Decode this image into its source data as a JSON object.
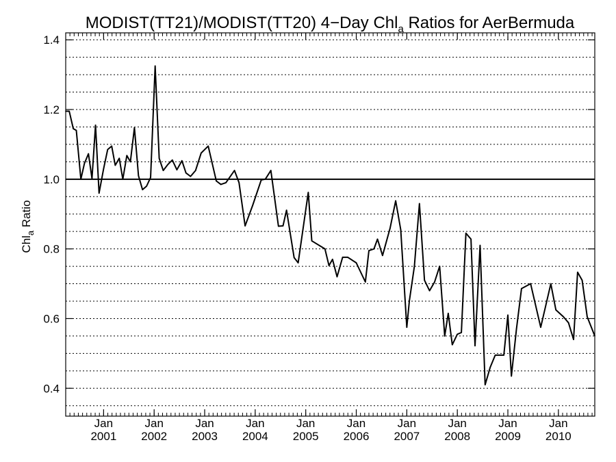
{
  "chart_data": {
    "type": "line",
    "title": {
      "main": "MODIST(TT21)/MODIST(TT20) 4−Day Chl",
      "sub": "a",
      "end": " Ratios for AerBermuda"
    },
    "ylabel": {
      "main": "Chl",
      "sub": "a",
      "end": " Ratio"
    },
    "ylim": [
      0.32,
      1.42
    ],
    "xlim": [
      2000.25,
      2010.72
    ],
    "y_ticks": [
      0.4,
      0.6,
      0.8,
      1.0,
      1.2,
      1.4
    ],
    "y_tick_labels": [
      "0.4",
      "0.6",
      "0.8",
      "1.0",
      "1.2",
      "1.4"
    ],
    "y_minor_gridlines": [
      0.35,
      0.4,
      0.45,
      0.5,
      0.55,
      0.6,
      0.65,
      0.7,
      0.75,
      0.8,
      0.85,
      0.9,
      0.95,
      1.05,
      1.1,
      1.15,
      1.2,
      1.25,
      1.3,
      1.35,
      1.4
    ],
    "reference_line": 1.0,
    "grid": "dotted horizontal",
    "x_ticks": [
      {
        "x": 2001.0,
        "month": "Jan",
        "year": "2001"
      },
      {
        "x": 2002.0,
        "month": "Jan",
        "year": "2002"
      },
      {
        "x": 2003.0,
        "month": "Jan",
        "year": "2003"
      },
      {
        "x": 2004.0,
        "month": "Jan",
        "year": "2004"
      },
      {
        "x": 2005.0,
        "month": "Jan",
        "year": "2005"
      },
      {
        "x": 2006.0,
        "month": "Jan",
        "year": "2006"
      },
      {
        "x": 2007.0,
        "month": "Jan",
        "year": "2007"
      },
      {
        "x": 2008.0,
        "month": "Jan",
        "year": "2008"
      },
      {
        "x": 2009.0,
        "month": "Jan",
        "year": "2009"
      },
      {
        "x": 2010.0,
        "month": "Jan",
        "year": "2010"
      }
    ],
    "series": [
      {
        "color": "#000000",
        "points": [
          [
            2000.25,
            1.195
          ],
          [
            2000.32,
            1.195
          ],
          [
            2000.4,
            1.145
          ],
          [
            2000.46,
            1.14
          ],
          [
            2000.55,
            1.0
          ],
          [
            2000.62,
            1.045
          ],
          [
            2000.7,
            1.073
          ],
          [
            2000.77,
            1.002
          ],
          [
            2000.84,
            1.155
          ],
          [
            2000.91,
            0.96
          ],
          [
            2001.0,
            1.03
          ],
          [
            2001.08,
            1.085
          ],
          [
            2001.16,
            1.095
          ],
          [
            2001.23,
            1.04
          ],
          [
            2001.31,
            1.06
          ],
          [
            2001.38,
            1.0
          ],
          [
            2001.46,
            1.068
          ],
          [
            2001.53,
            1.05
          ],
          [
            2001.61,
            1.148
          ],
          [
            2001.69,
            1.01
          ],
          [
            2001.77,
            0.97
          ],
          [
            2001.85,
            0.98
          ],
          [
            2001.93,
            1.005
          ],
          [
            2002.02,
            1.325
          ],
          [
            2002.1,
            1.06
          ],
          [
            2002.18,
            1.025
          ],
          [
            2002.27,
            1.042
          ],
          [
            2002.36,
            1.055
          ],
          [
            2002.45,
            1.027
          ],
          [
            2002.55,
            1.053
          ],
          [
            2002.63,
            1.018
          ],
          [
            2002.72,
            1.008
          ],
          [
            2002.82,
            1.025
          ],
          [
            2002.93,
            1.075
          ],
          [
            2003.07,
            1.095
          ],
          [
            2003.23,
            0.995
          ],
          [
            2003.32,
            0.985
          ],
          [
            2003.42,
            0.99
          ],
          [
            2003.59,
            1.025
          ],
          [
            2003.68,
            0.99
          ],
          [
            2003.8,
            0.866
          ],
          [
            2003.95,
            0.925
          ],
          [
            2004.12,
            0.998
          ],
          [
            2004.2,
            1.0
          ],
          [
            2004.31,
            1.025
          ],
          [
            2004.46,
            0.865
          ],
          [
            2004.55,
            0.866
          ],
          [
            2004.62,
            0.911
          ],
          [
            2004.77,
            0.775
          ],
          [
            2004.85,
            0.76
          ],
          [
            2005.05,
            0.962
          ],
          [
            2005.12,
            0.823
          ],
          [
            2005.38,
            0.8
          ],
          [
            2005.46,
            0.752
          ],
          [
            2005.53,
            0.77
          ],
          [
            2005.62,
            0.72
          ],
          [
            2005.73,
            0.776
          ],
          [
            2005.83,
            0.776
          ],
          [
            2006.0,
            0.76
          ],
          [
            2006.18,
            0.705
          ],
          [
            2006.25,
            0.795
          ],
          [
            2006.35,
            0.8
          ],
          [
            2006.42,
            0.828
          ],
          [
            2006.52,
            0.781
          ],
          [
            2006.67,
            0.86
          ],
          [
            2006.78,
            0.938
          ],
          [
            2006.88,
            0.855
          ],
          [
            2007.0,
            0.575
          ],
          [
            2007.05,
            0.65
          ],
          [
            2007.15,
            0.75
          ],
          [
            2007.25,
            0.93
          ],
          [
            2007.35,
            0.71
          ],
          [
            2007.45,
            0.68
          ],
          [
            2007.55,
            0.705
          ],
          [
            2007.65,
            0.75
          ],
          [
            2007.75,
            0.55
          ],
          [
            2007.82,
            0.615
          ],
          [
            2007.9,
            0.525
          ],
          [
            2008.0,
            0.555
          ],
          [
            2008.08,
            0.56
          ],
          [
            2008.17,
            0.845
          ],
          [
            2008.27,
            0.828
          ],
          [
            2008.35,
            0.522
          ],
          [
            2008.45,
            0.81
          ],
          [
            2008.55,
            0.41
          ],
          [
            2008.65,
            0.46
          ],
          [
            2008.75,
            0.495
          ],
          [
            2008.85,
            0.495
          ],
          [
            2008.92,
            0.495
          ],
          [
            2009.0,
            0.61
          ],
          [
            2009.07,
            0.435
          ],
          [
            2009.17,
            0.57
          ],
          [
            2009.27,
            0.686
          ],
          [
            2009.45,
            0.7
          ],
          [
            2009.65,
            0.575
          ],
          [
            2009.85,
            0.7
          ],
          [
            2009.95,
            0.625
          ],
          [
            2010.1,
            0.605
          ],
          [
            2010.2,
            0.588
          ],
          [
            2010.3,
            0.54
          ],
          [
            2010.38,
            0.733
          ],
          [
            2010.47,
            0.71
          ],
          [
            2010.57,
            0.605
          ],
          [
            2010.72,
            0.55
          ]
        ]
      }
    ]
  }
}
